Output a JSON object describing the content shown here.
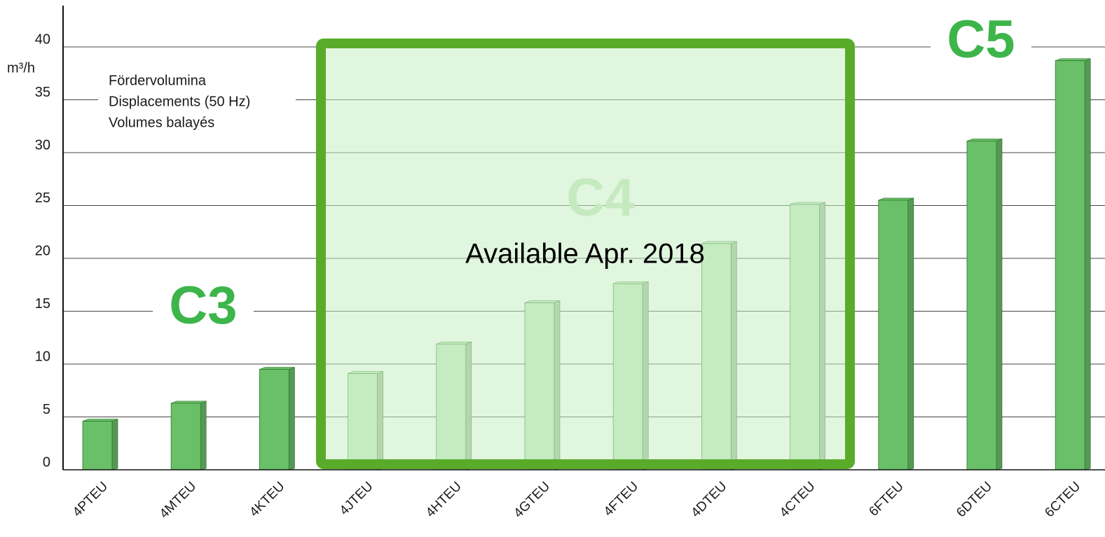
{
  "chart_data": {
    "type": "bar",
    "y_axis_label": "m³/h",
    "legend_text": [
      "Fördervolumina",
      "Displacements (50 Hz)",
      "Volumes balayés"
    ],
    "categories": [
      "4PTEU",
      "4MTEU",
      "4KTEU",
      "4JTEU",
      "4HTEU",
      "4GTEU",
      "4FTEU",
      "4DTEU",
      "4CTEU",
      "6FTEU",
      "6DTEU",
      "6CTEU"
    ],
    "values": [
      4.6,
      6.3,
      9.5,
      9.1,
      11.9,
      15.8,
      17.6,
      21.4,
      25.1,
      25.5,
      31.1,
      38.7
    ],
    "colors": [
      "#6abf69",
      "#6abf69",
      "#6abf69",
      "#c0e6bd",
      "#c0e6bd",
      "#c0e6bd",
      "#c0e6bd",
      "#c0e6bd",
      "#c0e6bd",
      "#6abf69",
      "#6abf69",
      "#6abf69"
    ],
    "group_labels": [
      "C3",
      "C4",
      "C5"
    ],
    "annotation": "Available Apr. 2018",
    "ylim": [
      0,
      44
    ],
    "yticks": [
      0,
      5,
      10,
      15,
      20,
      25,
      30,
      35,
      40
    ],
    "grid": true
  }
}
